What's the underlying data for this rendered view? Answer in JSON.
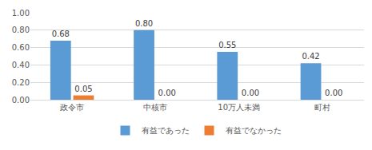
{
  "chart_data": {
    "type": "bar",
    "categories": [
      "政令市",
      "中核市",
      "10万人未満",
      "町村"
    ],
    "series": [
      {
        "name": "有益であった",
        "color": "#5b9bd5",
        "values": [
          0.68,
          0.8,
          0.55,
          0.42
        ],
        "value_labels": [
          "0.68",
          "0.80",
          "0.55",
          "0.42"
        ]
      },
      {
        "name": "有益でなかった",
        "color": "#ed7d31",
        "values": [
          0.05,
          0,
          0,
          0
        ],
        "value_labels": [
          "0.05",
          "0.00",
          "0.00",
          "0.00"
        ]
      }
    ],
    "ylim": [
      0,
      1
    ],
    "yticks": [
      {
        "value": 0,
        "label": "0.00"
      },
      {
        "value": 0.2,
        "label": "0.20"
      },
      {
        "value": 0.4,
        "label": "0.40"
      },
      {
        "value": 0.6,
        "label": "0.60"
      },
      {
        "value": 0.8,
        "label": "0.80"
      },
      {
        "value": 1,
        "label": "1.00"
      }
    ],
    "grid": true,
    "data_labels": true,
    "legend": "bottom"
  }
}
